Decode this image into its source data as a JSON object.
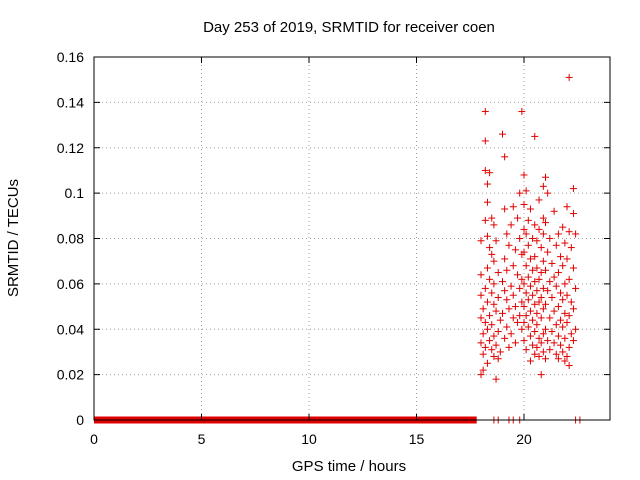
{
  "chart_data": {
    "type": "scatter",
    "title": "Day 253 of 2019, SRMTID for receiver coen",
    "xlabel": "GPS time / hours",
    "ylabel": "SRMTID / TECUs",
    "xlim": [
      0,
      24
    ],
    "ylim": [
      0,
      0.16
    ],
    "xticks": [
      0,
      5,
      10,
      15,
      20
    ],
    "yticks": [
      0,
      0.02,
      0.04,
      0.06,
      0.08,
      0.1,
      0.12,
      0.14,
      0.16
    ],
    "xtick_labels": [
      "0",
      "5",
      "10",
      "15",
      "20"
    ],
    "ytick_labels": [
      "0",
      "0.02",
      "0.04",
      "0.06",
      "0.08",
      "0.1",
      "0.12",
      "0.14",
      "0.16"
    ],
    "grid": true,
    "marker": "+",
    "color": "#e00000",
    "zero_band": {
      "x_start": 0,
      "x_end": 17.8,
      "y": 0
    },
    "series": [
      {
        "name": "SRMTID",
        "points": [
          [
            18.6,
            0
          ],
          [
            18.8,
            0
          ],
          [
            19.3,
            0
          ],
          [
            19.5,
            0
          ],
          [
            19.8,
            0
          ],
          [
            22.4,
            0
          ],
          [
            22.6,
            0
          ],
          [
            22.1,
            0.151
          ],
          [
            18.2,
            0.136
          ],
          [
            19.9,
            0.136
          ],
          [
            19.0,
            0.126
          ],
          [
            20.5,
            0.125
          ],
          [
            18.2,
            0.123
          ],
          [
            19.1,
            0.116
          ],
          [
            18.2,
            0.11
          ],
          [
            18.4,
            0.109
          ],
          [
            20.0,
            0.108
          ],
          [
            21.0,
            0.107
          ],
          [
            18.3,
            0.104
          ],
          [
            20.9,
            0.103
          ],
          [
            22.3,
            0.102
          ],
          [
            20.1,
            0.101
          ],
          [
            19.8,
            0.1
          ],
          [
            21.1,
            0.1
          ],
          [
            20.7,
            0.097
          ],
          [
            18.3,
            0.096
          ],
          [
            20.0,
            0.095
          ],
          [
            19.5,
            0.094
          ],
          [
            22.0,
            0.094
          ],
          [
            19.1,
            0.093
          ],
          [
            20.3,
            0.093
          ],
          [
            21.4,
            0.092
          ],
          [
            22.3,
            0.091
          ],
          [
            18.5,
            0.089
          ],
          [
            19.7,
            0.089
          ],
          [
            20.9,
            0.089
          ],
          [
            18.2,
            0.088
          ],
          [
            20.2,
            0.088
          ],
          [
            21.0,
            0.087
          ],
          [
            18.6,
            0.086
          ],
          [
            19.4,
            0.086
          ],
          [
            20.5,
            0.086
          ],
          [
            21.8,
            0.085
          ],
          [
            20.0,
            0.084
          ],
          [
            20.7,
            0.084
          ],
          [
            22.1,
            0.083
          ],
          [
            19.2,
            0.082
          ],
          [
            20.1,
            0.082
          ],
          [
            20.9,
            0.082
          ],
          [
            21.6,
            0.082
          ],
          [
            22.4,
            0.082
          ],
          [
            18.3,
            0.081
          ],
          [
            19.8,
            0.08
          ],
          [
            20.4,
            0.08
          ],
          [
            21.2,
            0.08
          ],
          [
            18.0,
            0.079
          ],
          [
            18.7,
            0.079
          ],
          [
            20.6,
            0.079
          ],
          [
            21.9,
            0.078
          ],
          [
            19.3,
            0.077
          ],
          [
            20.2,
            0.077
          ],
          [
            21.5,
            0.077
          ],
          [
            18.4,
            0.076
          ],
          [
            20.8,
            0.076
          ],
          [
            22.2,
            0.076
          ],
          [
            19.6,
            0.075
          ],
          [
            20.0,
            0.074
          ],
          [
            21.1,
            0.074
          ],
          [
            18.5,
            0.073
          ],
          [
            19.9,
            0.073
          ],
          [
            20.5,
            0.072
          ],
          [
            21.7,
            0.072
          ],
          [
            19.1,
            0.071
          ],
          [
            20.3,
            0.071
          ],
          [
            22.0,
            0.071
          ],
          [
            18.6,
            0.07
          ],
          [
            20.9,
            0.07
          ],
          [
            21.3,
            0.069
          ],
          [
            19.5,
            0.068
          ],
          [
            20.1,
            0.068
          ],
          [
            21.8,
            0.068
          ],
          [
            18.3,
            0.067
          ],
          [
            20.6,
            0.067
          ],
          [
            22.3,
            0.067
          ],
          [
            19.2,
            0.066
          ],
          [
            20.4,
            0.066
          ],
          [
            21.0,
            0.066
          ],
          [
            18.8,
            0.065
          ],
          [
            20.8,
            0.065
          ],
          [
            21.6,
            0.065
          ],
          [
            18.0,
            0.064
          ],
          [
            19.7,
            0.064
          ],
          [
            20.2,
            0.063
          ],
          [
            21.4,
            0.063
          ],
          [
            18.4,
            0.062
          ],
          [
            19.9,
            0.062
          ],
          [
            20.7,
            0.062
          ],
          [
            22.1,
            0.062
          ],
          [
            19.0,
            0.061
          ],
          [
            20.5,
            0.061
          ],
          [
            21.2,
            0.061
          ],
          [
            18.6,
            0.06
          ],
          [
            20.0,
            0.06
          ],
          [
            21.9,
            0.06
          ],
          [
            19.4,
            0.059
          ],
          [
            20.3,
            0.059
          ],
          [
            21.5,
            0.059
          ],
          [
            18.2,
            0.058
          ],
          [
            19.8,
            0.058
          ],
          [
            20.9,
            0.058
          ],
          [
            22.4,
            0.058
          ],
          [
            19.1,
            0.057
          ],
          [
            20.6,
            0.057
          ],
          [
            21.1,
            0.057
          ],
          [
            18.5,
            0.056
          ],
          [
            20.1,
            0.056
          ],
          [
            21.7,
            0.056
          ],
          [
            18.0,
            0.055
          ],
          [
            19.5,
            0.055
          ],
          [
            20.4,
            0.055
          ],
          [
            22.0,
            0.055
          ],
          [
            18.8,
            0.054
          ],
          [
            20.8,
            0.054
          ],
          [
            21.3,
            0.054
          ],
          [
            19.2,
            0.053
          ],
          [
            20.2,
            0.053
          ],
          [
            21.8,
            0.053
          ],
          [
            18.3,
            0.052
          ],
          [
            19.9,
            0.052
          ],
          [
            20.7,
            0.052
          ],
          [
            22.2,
            0.052
          ],
          [
            18.6,
            0.051
          ],
          [
            20.5,
            0.051
          ],
          [
            21.0,
            0.051
          ],
          [
            19.6,
            0.05
          ],
          [
            20.0,
            0.05
          ],
          [
            21.6,
            0.05
          ],
          [
            18.1,
            0.049
          ],
          [
            19.3,
            0.049
          ],
          [
            20.9,
            0.049
          ],
          [
            22.3,
            0.049
          ],
          [
            18.7,
            0.048
          ],
          [
            20.3,
            0.048
          ],
          [
            21.4,
            0.048
          ],
          [
            19.0,
            0.047
          ],
          [
            20.6,
            0.047
          ],
          [
            21.9,
            0.047
          ],
          [
            18.4,
            0.046
          ],
          [
            19.8,
            0.046
          ],
          [
            20.1,
            0.046
          ],
          [
            22.1,
            0.046
          ],
          [
            18.0,
            0.045
          ],
          [
            19.5,
            0.045
          ],
          [
            20.8,
            0.045
          ],
          [
            21.2,
            0.045
          ],
          [
            18.9,
            0.044
          ],
          [
            20.4,
            0.044
          ],
          [
            21.7,
            0.044
          ],
          [
            18.2,
            0.043
          ],
          [
            19.7,
            0.043
          ],
          [
            20.0,
            0.043
          ],
          [
            22.0,
            0.043
          ],
          [
            18.5,
            0.042
          ],
          [
            20.6,
            0.042
          ],
          [
            21.5,
            0.042
          ],
          [
            19.2,
            0.041
          ],
          [
            20.2,
            0.041
          ],
          [
            21.8,
            0.041
          ],
          [
            18.3,
            0.04
          ],
          [
            19.9,
            0.04
          ],
          [
            21.0,
            0.04
          ],
          [
            22.4,
            0.04
          ],
          [
            18.8,
            0.039
          ],
          [
            20.5,
            0.039
          ],
          [
            21.3,
            0.039
          ],
          [
            18.1,
            0.038
          ],
          [
            19.4,
            0.038
          ],
          [
            20.9,
            0.038
          ],
          [
            22.2,
            0.038
          ],
          [
            18.6,
            0.037
          ],
          [
            20.3,
            0.037
          ],
          [
            21.6,
            0.037
          ],
          [
            19.1,
            0.036
          ],
          [
            20.7,
            0.036
          ],
          [
            21.9,
            0.036
          ],
          [
            18.4,
            0.035
          ],
          [
            20.0,
            0.035
          ],
          [
            21.1,
            0.035
          ],
          [
            22.3,
            0.035
          ],
          [
            18.0,
            0.034
          ],
          [
            19.6,
            0.034
          ],
          [
            20.8,
            0.034
          ],
          [
            21.4,
            0.034
          ],
          [
            18.7,
            0.033
          ],
          [
            20.4,
            0.033
          ],
          [
            21.7,
            0.033
          ],
          [
            18.2,
            0.032
          ],
          [
            19.3,
            0.032
          ],
          [
            20.6,
            0.032
          ],
          [
            22.1,
            0.032
          ],
          [
            18.5,
            0.031
          ],
          [
            20.1,
            0.031
          ],
          [
            21.2,
            0.031
          ],
          [
            18.9,
            0.03
          ],
          [
            20.9,
            0.03
          ],
          [
            21.8,
            0.03
          ],
          [
            18.1,
            0.029
          ],
          [
            20.5,
            0.029
          ],
          [
            21.5,
            0.029
          ],
          [
            18.6,
            0.028
          ],
          [
            20.7,
            0.028
          ],
          [
            22.0,
            0.028
          ],
          [
            18.8,
            0.027
          ],
          [
            21.0,
            0.027
          ],
          [
            21.6,
            0.027
          ],
          [
            20.3,
            0.026
          ],
          [
            21.9,
            0.026
          ],
          [
            18.3,
            0.025
          ],
          [
            22.1,
            0.024
          ],
          [
            18.1,
            0.022
          ],
          [
            20.8,
            0.02
          ],
          [
            18.0,
            0.02
          ],
          [
            18.7,
            0.018
          ]
        ]
      }
    ]
  }
}
